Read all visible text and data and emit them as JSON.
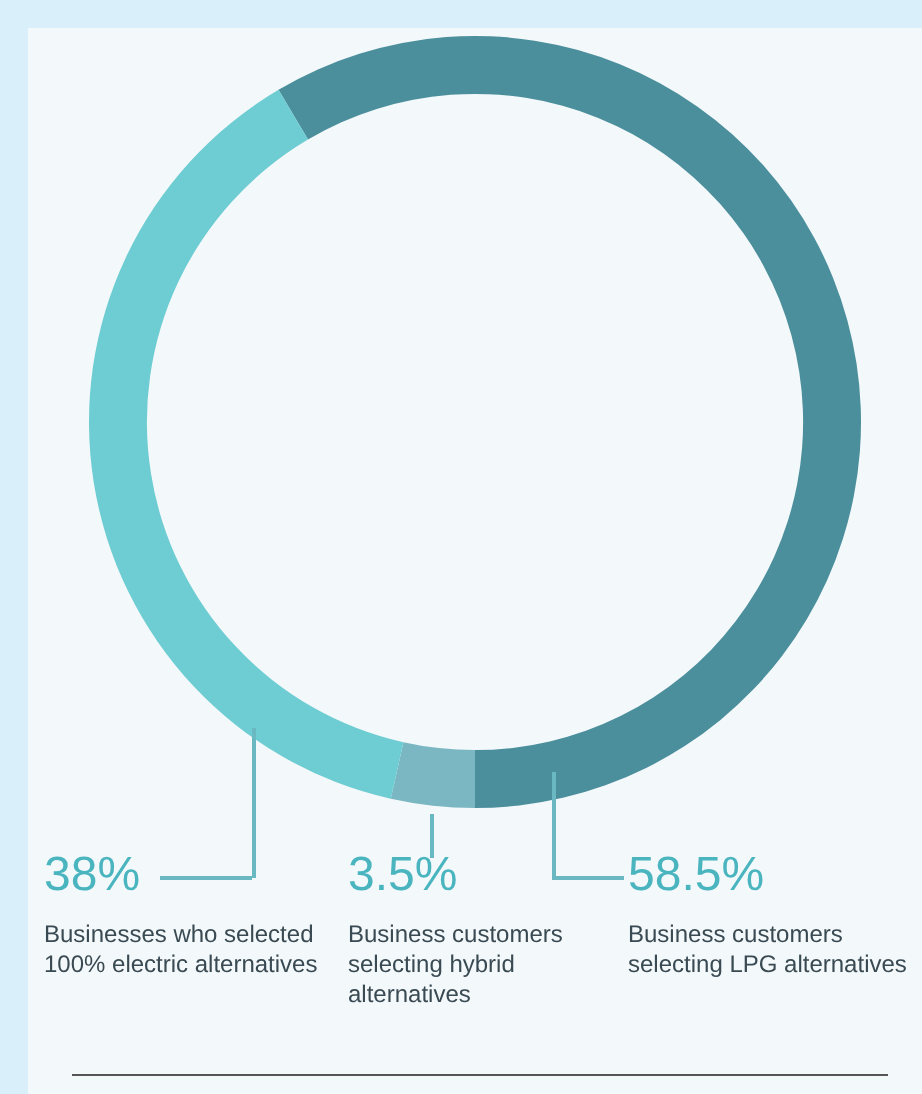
{
  "chart_data": {
    "type": "donut",
    "categories": [
      "Business customers selecting LPG alternatives",
      "Business customers selecting hybrid alternatives",
      "Businesses who selected 100% electric alternatives"
    ],
    "values": [
      58.5,
      3.5,
      38
    ],
    "colors": [
      "#4b8f9c",
      "#7bb7c2",
      "#6dcdd2"
    ],
    "value_labels": [
      "58.5%",
      "3.5%",
      "38%"
    ],
    "legend": false
  }
}
